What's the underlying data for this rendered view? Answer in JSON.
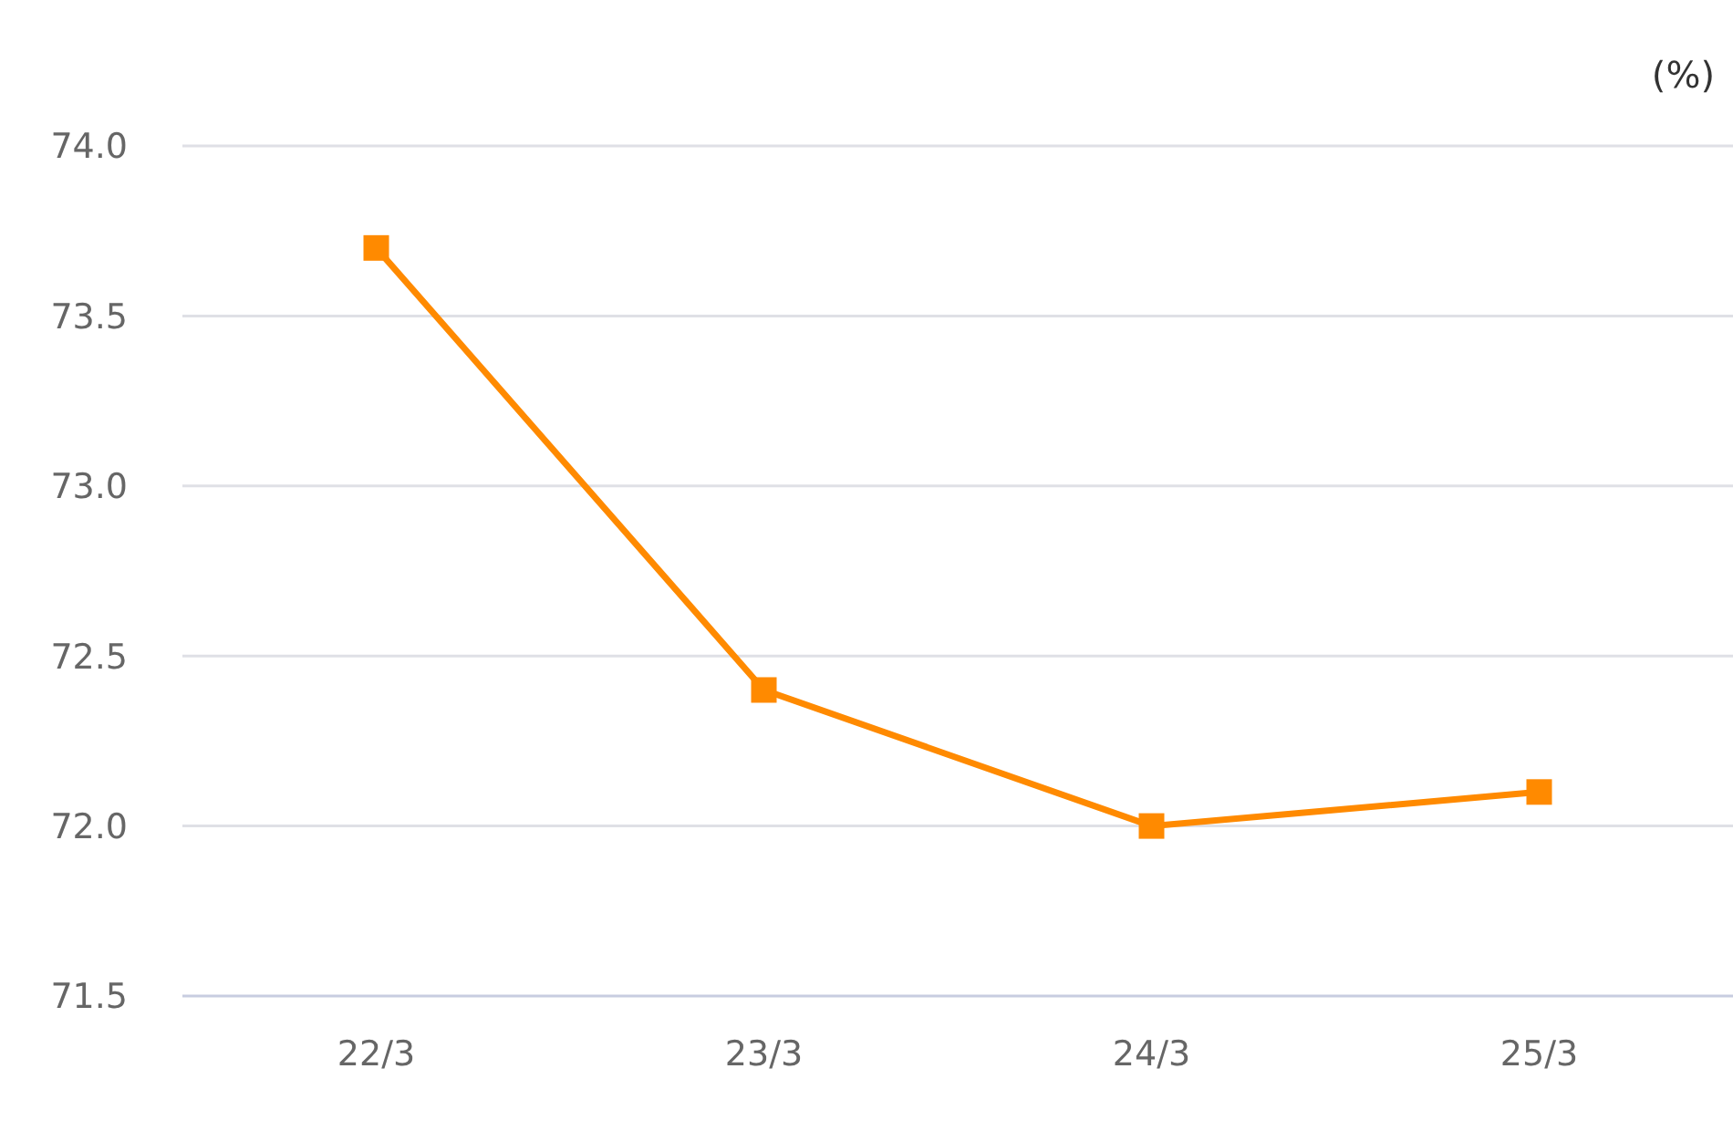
{
  "chart_data": {
    "type": "line",
    "ylabel": "(%)",
    "categories": [
      "22/3",
      "23/3",
      "24/3",
      "25/3"
    ],
    "series": [
      {
        "color": "#ff8a00",
        "values": [
          73.7,
          72.4,
          72.0,
          72.1
        ]
      }
    ],
    "ylim": [
      71.5,
      74.0
    ],
    "yticks": [
      {
        "value": 71.5,
        "label": "71.5"
      },
      {
        "value": 72,
        "label": "72.0"
      },
      {
        "value": 72.5,
        "label": "72.5"
      },
      {
        "value": 73,
        "label": "73.0"
      },
      {
        "value": 73.5,
        "label": "73.5"
      },
      {
        "value": 74,
        "label": "74.0"
      }
    ],
    "grid": "y",
    "marker": "square",
    "line_style": "solid"
  }
}
